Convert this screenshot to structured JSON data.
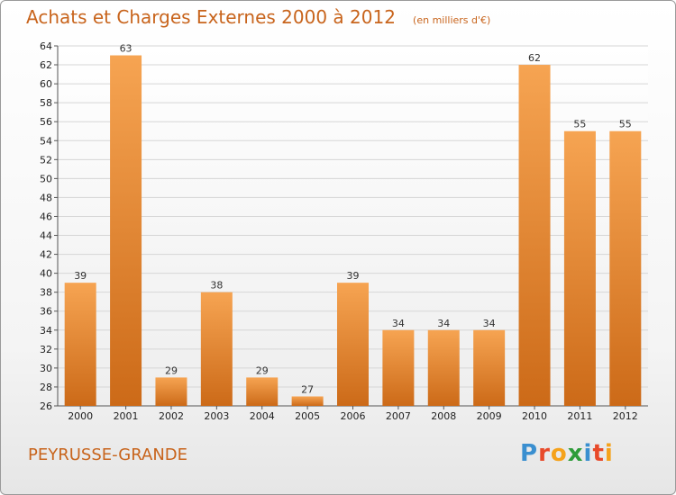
{
  "header": {
    "title": "Achats et Charges Externes 2000 à 2012",
    "subtitle": "(en milliers d'€)"
  },
  "footer": {
    "commune": "PEYRUSSE-GRANDE",
    "logo": {
      "letters": [
        "P",
        "r",
        "o",
        "x",
        "i",
        "t",
        "i"
      ],
      "colors": [
        "#3a8fd0",
        "#e84a2a",
        "#f5a21b",
        "#2e9c3a",
        "#3a8fd0",
        "#e84a2a",
        "#f5a21b"
      ]
    }
  },
  "chart_data": {
    "type": "bar",
    "title": "Achats et Charges Externes 2000 à 2012",
    "subtitle": "(en milliers d'€)",
    "categories": [
      "2000",
      "2001",
      "2002",
      "2003",
      "2004",
      "2005",
      "2006",
      "2007",
      "2008",
      "2009",
      "2010",
      "2011",
      "2012"
    ],
    "values": [
      39,
      63,
      29,
      38,
      29,
      27,
      39,
      34,
      34,
      34,
      62,
      55,
      55
    ],
    "ylim": [
      26,
      64
    ],
    "ytick_step": 2,
    "grid": true,
    "bar_color_top": "#f6a452",
    "bar_color_bottom": "#cc6a18"
  }
}
